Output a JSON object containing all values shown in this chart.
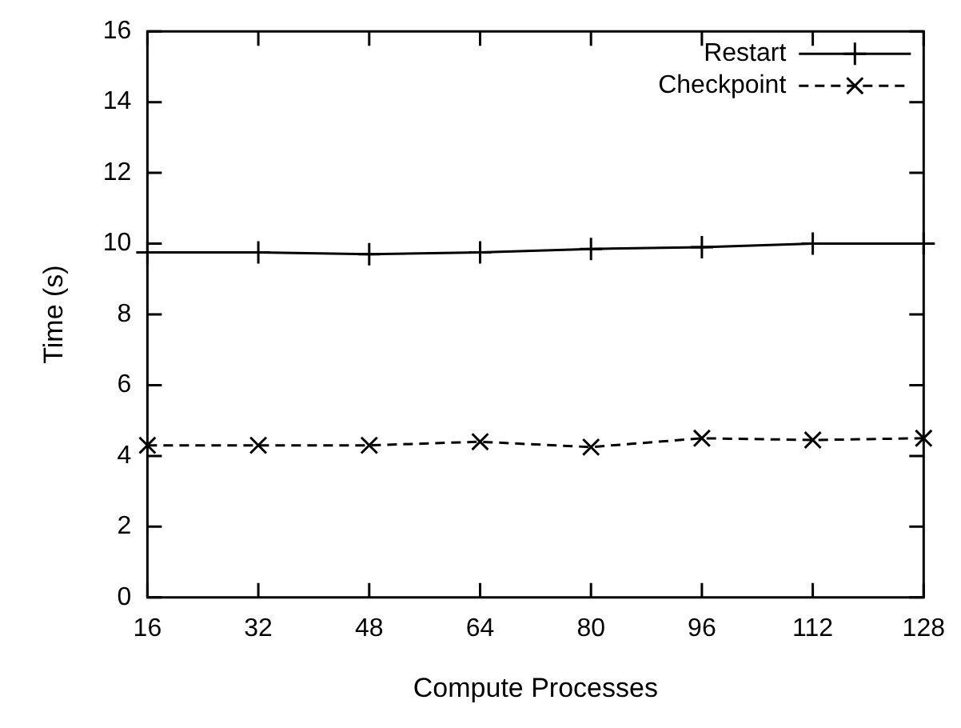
{
  "chart_data": {
    "type": "line",
    "xlabel": "Compute Processes",
    "ylabel": "Time (s)",
    "x": [
      16,
      32,
      48,
      64,
      80,
      96,
      112,
      128
    ],
    "series": [
      {
        "name": "Restart",
        "color": "#000000",
        "line_style": "solid",
        "marker": "cross",
        "values": [
          9.75,
          9.75,
          9.7,
          9.75,
          9.85,
          9.9,
          10.0,
          10.0
        ]
      },
      {
        "name": "Checkpoint",
        "color": "#000000",
        "line_style": "dashed",
        "marker": "cross",
        "values": [
          4.3,
          4.3,
          4.3,
          4.4,
          4.25,
          4.5,
          4.45,
          4.5
        ]
      }
    ],
    "xlim": [
      16,
      128
    ],
    "xticks": [
      16,
      32,
      48,
      64,
      80,
      96,
      112,
      128
    ],
    "ylim": [
      0,
      16
    ],
    "yticks": [
      0,
      2,
      4,
      6,
      8,
      10,
      12,
      14,
      16
    ],
    "grid": false,
    "legend": "top right"
  }
}
